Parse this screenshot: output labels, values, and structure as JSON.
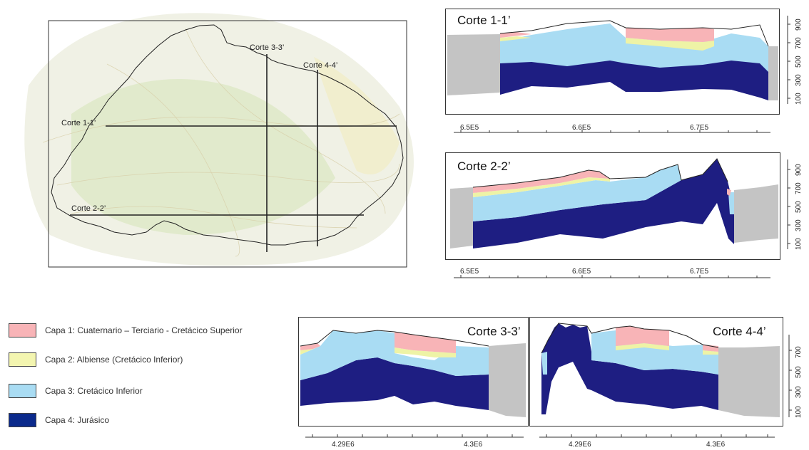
{
  "map": {
    "section_labels": [
      "Corte 1-1’",
      "Corte 2-2’",
      "Corte 3-3’",
      "Corte 4-4’"
    ]
  },
  "sections": [
    {
      "title": "Corte 1-1’",
      "x_ticks": [
        "6.5E5",
        "6.6E5",
        "6.7E5"
      ],
      "y_ticks": [
        "100",
        "300",
        "500",
        "700",
        "900"
      ]
    },
    {
      "title": "Corte 2-2’",
      "x_ticks": [
        "6.5E5",
        "6.6E5",
        "6.7E5"
      ],
      "y_ticks": [
        "100",
        "300",
        "500",
        "700",
        "900"
      ]
    },
    {
      "title": "Corte 3-3’",
      "x_ticks": [
        "4.29E6",
        "4.3E6"
      ],
      "y_ticks": []
    },
    {
      "title": "Corte 4-4’",
      "x_ticks": [
        "4.29E6",
        "4.3E6"
      ],
      "y_ticks": [
        "100",
        "300",
        "500",
        "700"
      ]
    }
  ],
  "legend": [
    {
      "label": "Capa 1: Cuaternario – Terciario - Cretácico Superior",
      "color": "#f8b4b7"
    },
    {
      "label": "Capa 2: Albiense (Cretácico Inferior)",
      "color": "#f3f5b0"
    },
    {
      "label": "Capa 3: Cretácico Inferior",
      "color": "#a9dcf3"
    },
    {
      "label": "Capa 4: Jurásico",
      "color": "#1e1e82"
    }
  ],
  "colors": {
    "layer1": "#f8b4b7",
    "layer2": "#eef3a6",
    "layer3": "#a9dcf3",
    "layer4": "#1e1e82",
    "ground": "#c4c4c4"
  }
}
